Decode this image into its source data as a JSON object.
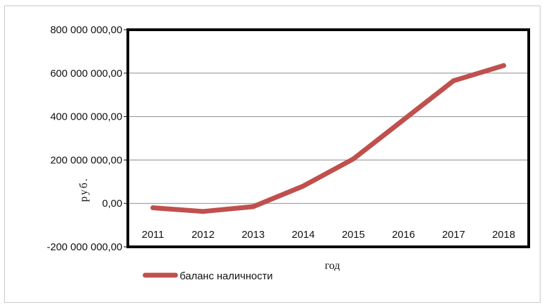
{
  "chart_data": {
    "type": "line",
    "title": "",
    "xlabel": "год",
    "ylabel": "руб.",
    "x": [
      "2011",
      "2012",
      "2013",
      "2014",
      "2015",
      "2016",
      "2017",
      "2018"
    ],
    "y_ticks": [
      "800 000 000,00",
      "600 000 000,00",
      "400 000 000,00",
      "200 000 000,00",
      "0,00",
      "-200 000 000,00"
    ],
    "ylim": [
      -200000000,
      800000000
    ],
    "grid": true,
    "legend_position": "bottom-left",
    "series": [
      {
        "name": "баланс наличности",
        "color": "#c0504d",
        "values": [
          -20000000,
          -37000000,
          -15000000,
          80000000,
          205000000,
          385000000,
          565000000,
          635000000
        ]
      }
    ]
  }
}
